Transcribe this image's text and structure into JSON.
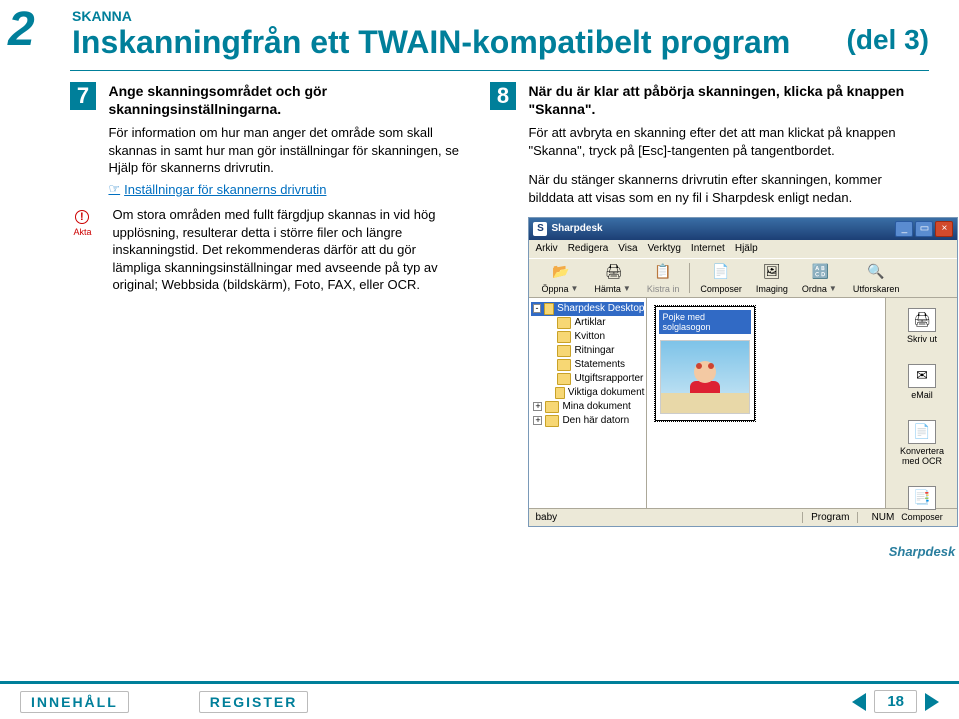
{
  "chapter": {
    "number": "2",
    "kicker": "SKANNA",
    "title": "Inskanningfrån ett TWAIN-kompatibelt program",
    "part": "(del 3)"
  },
  "left": {
    "step_number": "7",
    "step_title": "Ange skanningsområdet och gör skanningsinställningarna.",
    "step_text": "För information om hur man anger det område som skall skannas in samt hur man gör inställningar för skanningen, se Hjälp för skannerns drivrutin.",
    "link_label": "Inställningar för skannerns drivrutin",
    "caution_label": "Akta",
    "caution_text": "Om stora områden med fullt färgdjup skannas in vid hög upplösning, resulterar detta i större filer och längre inskanningstid. Det rekommenderas därför att du gör lämpliga skanningsinställningar med avseende på typ av original; Webbsida (bildskärm), Foto, FAX, eller OCR."
  },
  "right": {
    "step_number": "8",
    "step_title": "När du är klar att påbörja skanningen, klicka på knappen \"Skanna\".",
    "step_text1": "För att avbryta en skanning efter det att man klickat på knappen \"Skanna\", tryck på [Esc]-tangenten på tangentbordet.",
    "step_text2": "När du stänger skannerns drivrutin efter skanningen, kommer bilddata att visas som en ny fil i Sharpdesk enligt nedan."
  },
  "sharpdesk": {
    "title": "Sharpdesk",
    "menus": [
      "Arkiv",
      "Redigera",
      "Visa",
      "Verktyg",
      "Internet",
      "Hjälp"
    ],
    "toolbar": [
      {
        "label": "Öppna",
        "icon": "📂",
        "dis": false
      },
      {
        "label": "Hämta",
        "icon": "🖨",
        "dis": false
      },
      {
        "label": "Kistra in",
        "icon": "📋",
        "dis": true
      },
      {
        "label": "Composer",
        "icon": "📄",
        "dis": false
      },
      {
        "label": "Imaging",
        "icon": "🖼",
        "dis": false
      },
      {
        "label": "Ordna",
        "icon": "🔠",
        "dis": false
      },
      {
        "label": "Utforskaren",
        "icon": "🔍",
        "dis": false
      }
    ],
    "tree": [
      {
        "label": "Sharpdesk Desktop",
        "indent": 0,
        "twisty": "-",
        "sel": true
      },
      {
        "label": "Artiklar",
        "indent": 1
      },
      {
        "label": "Kvitton",
        "indent": 1
      },
      {
        "label": "Ritningar",
        "indent": 1
      },
      {
        "label": "Statements",
        "indent": 1
      },
      {
        "label": "Utgiftsrapporter",
        "indent": 1
      },
      {
        "label": "Viktiga dokument",
        "indent": 1
      },
      {
        "label": "Mina dokument",
        "indent": 0,
        "twisty": "+"
      },
      {
        "label": "Den här datorn",
        "indent": 0,
        "twisty": "+"
      }
    ],
    "thumb_name": "Pojke med solglasogon",
    "zones": [
      "Skriv ut",
      "eMail",
      "Konvertera med OCR",
      "Composer"
    ],
    "zone_icons": [
      "🖨",
      "✉",
      "📄",
      "📑"
    ],
    "brand": "Sharpdesk",
    "status_left": "baby",
    "status_right": [
      "Program",
      "NUM",
      ""
    ]
  },
  "footer": {
    "contents": "INNEHÅLL",
    "register": "REGISTER",
    "page": "18",
    "accent": "#007f9a"
  }
}
